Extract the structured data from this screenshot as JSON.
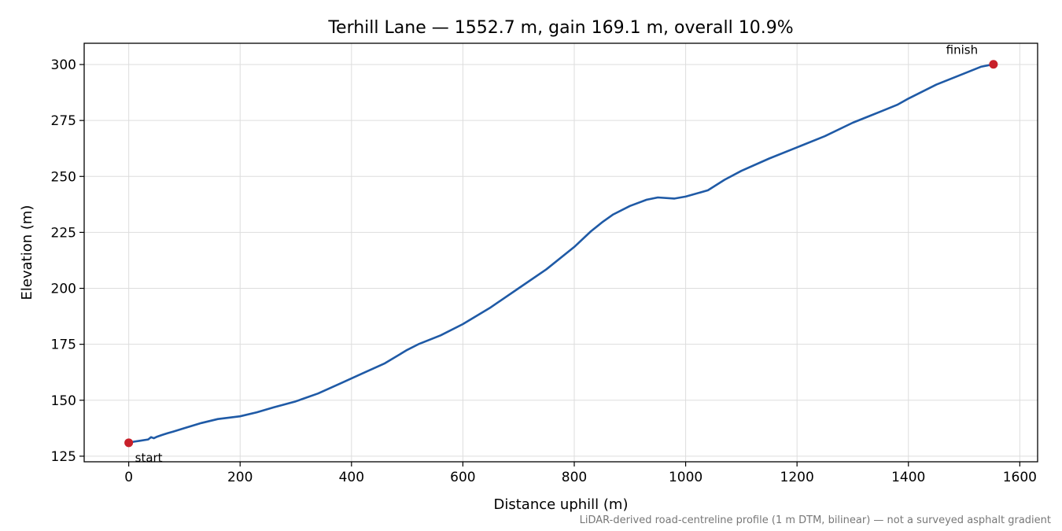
{
  "chart_data": {
    "type": "line",
    "title": "Terhill Lane — 1552.7 m, gain 169.1 m, overall 10.9%",
    "xlabel": "Distance uphill (m)",
    "ylabel": "Elevation (m)",
    "xlim": [
      -80,
      1632
    ],
    "ylim": [
      122.5,
      309.5
    ],
    "xticks": [
      0,
      200,
      400,
      600,
      800,
      1000,
      1200,
      1400,
      1600
    ],
    "yticks": [
      125,
      150,
      175,
      200,
      225,
      250,
      275,
      300
    ],
    "grid": true,
    "line_color": "#1f5aa6",
    "marker_color": "#c8202a",
    "series": [
      {
        "x": [
          0,
          10,
          20,
          35,
          40,
          45,
          50,
          60,
          70,
          80,
          100,
          130,
          160,
          200,
          230,
          260,
          300,
          340,
          380,
          420,
          460,
          500,
          520,
          560,
          600,
          650,
          700,
          750,
          800,
          830,
          850,
          870,
          900,
          930,
          950,
          980,
          1000,
          1040,
          1070,
          1100,
          1150,
          1200,
          1250,
          1300,
          1330,
          1350,
          1380,
          1400,
          1450,
          1500,
          1530,
          1552.7
        ],
        "y": [
          131.0,
          131.5,
          131.9,
          132.5,
          133.5,
          133.0,
          133.6,
          134.5,
          135.3,
          136.0,
          137.5,
          139.8,
          141.6,
          142.8,
          144.6,
          146.8,
          149.5,
          153.0,
          157.5,
          162.0,
          166.5,
          172.5,
          175.0,
          179.0,
          184.0,
          191.5,
          200.0,
          208.5,
          218.5,
          225.5,
          229.5,
          233.0,
          236.8,
          239.6,
          240.6,
          240.1,
          241.0,
          243.8,
          248.5,
          252.5,
          258.0,
          263.0,
          268.0,
          274.0,
          277.0,
          279.0,
          282.0,
          284.8,
          291.0,
          296.0,
          299.0,
          300.1
        ]
      }
    ],
    "points": [
      {
        "label": "start",
        "x": 0,
        "y": 131.0
      },
      {
        "label": "finish",
        "x": 1552.7,
        "y": 300.1
      }
    ],
    "footnote": "LiDAR-derived road-centreline profile (1 m DTM, bilinear) — not a surveyed asphalt gradient"
  }
}
